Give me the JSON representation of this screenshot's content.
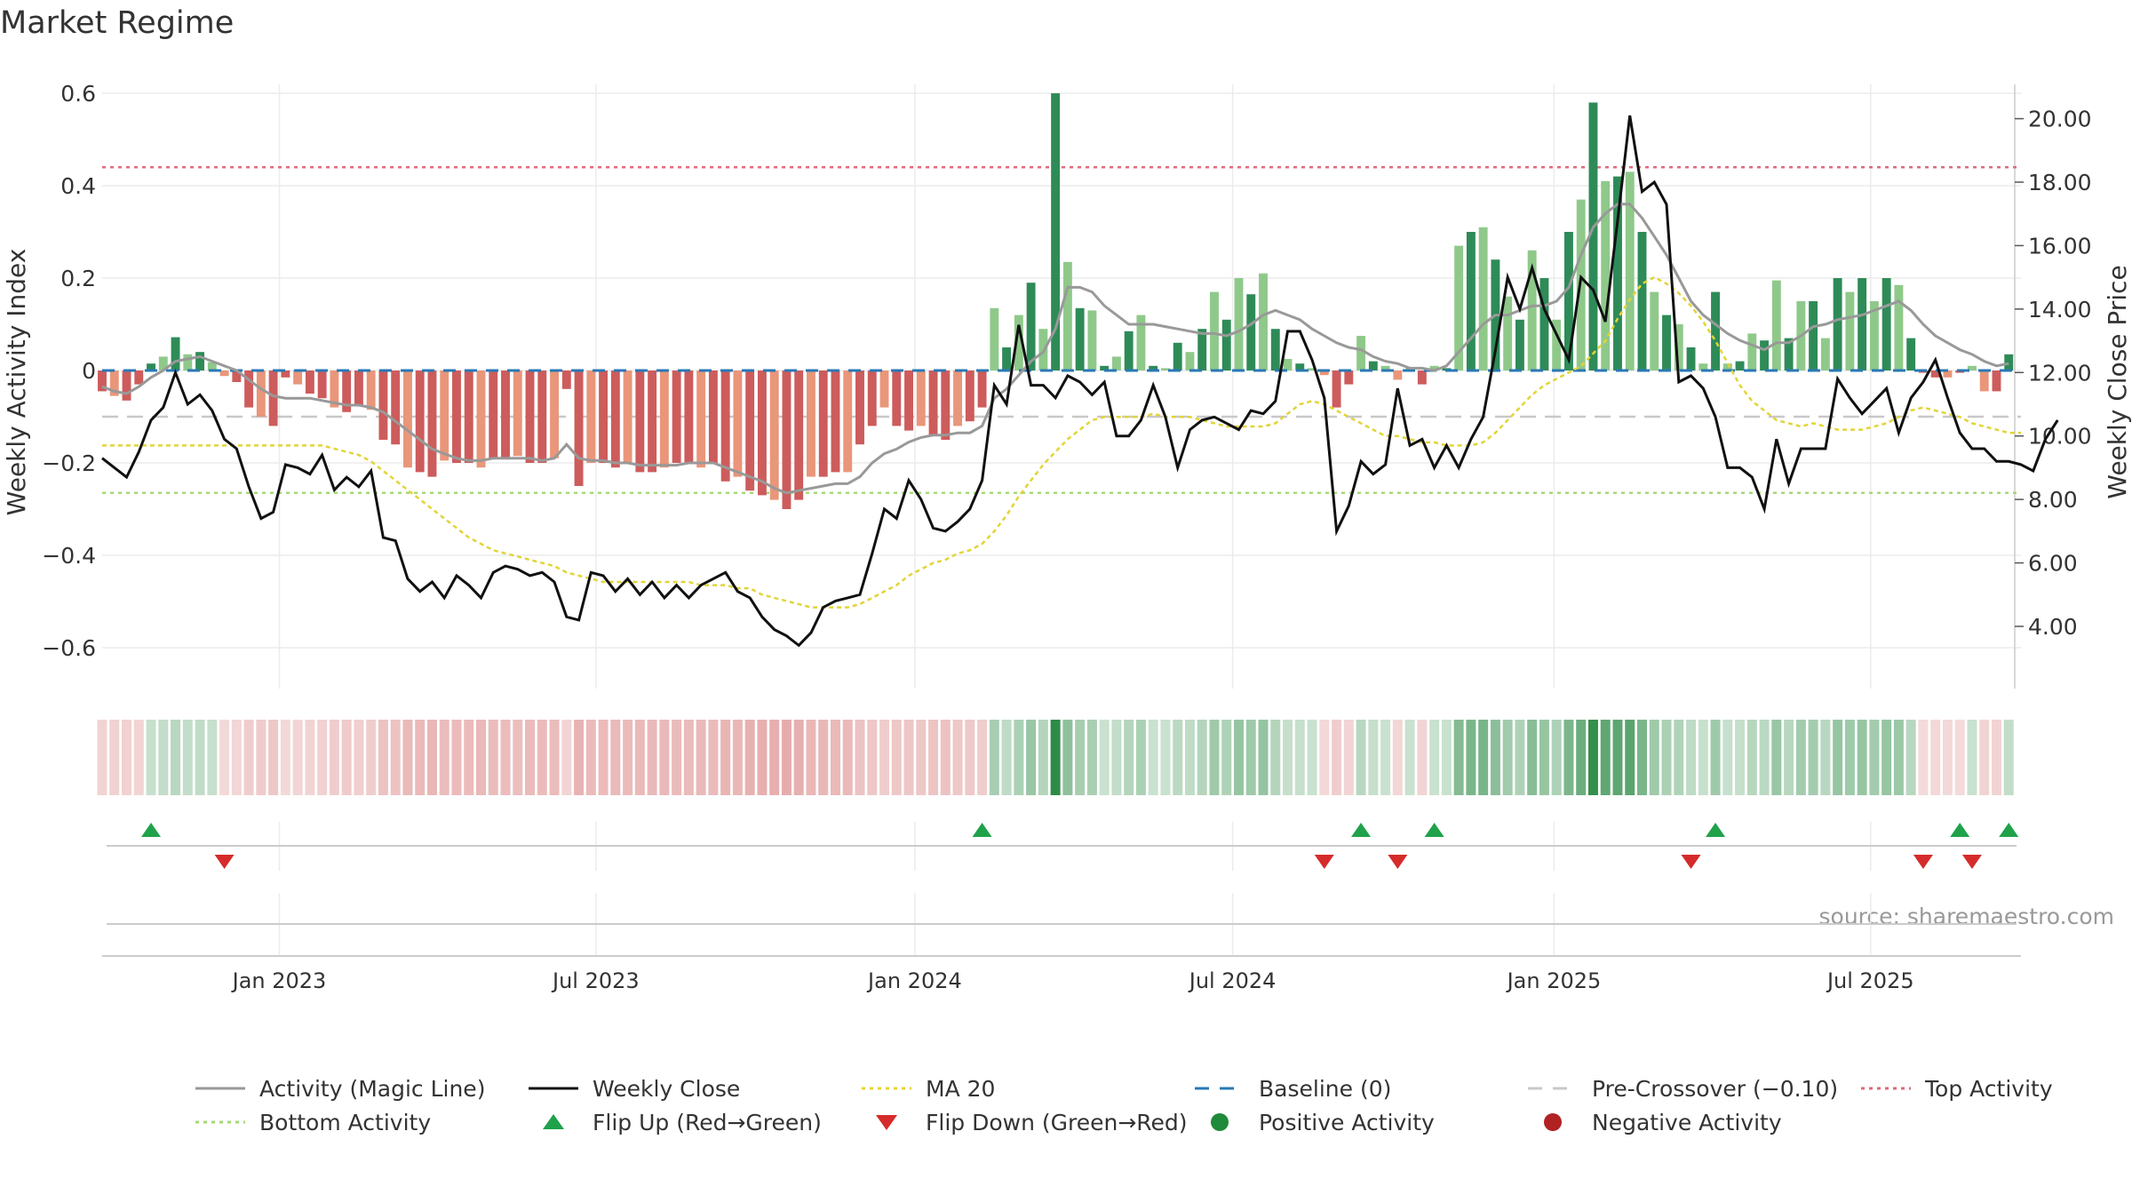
{
  "chart_data": {
    "type": "bar",
    "title": "Market Regime",
    "ylabel_left": "Weekly Activity Index",
    "ylabel_right": "Weekly Close Price",
    "ylim_left": [
      -0.65,
      0.6
    ],
    "ylim_right": [
      2.6,
      20.8
    ],
    "yticks_left": [
      -0.6,
      -0.4,
      -0.2,
      0,
      0.2,
      0.4,
      0.6
    ],
    "yticks_left_labels": [
      "−0.6",
      "−0.4",
      "−0.2",
      "0",
      "0.2",
      "0.4",
      "0.6"
    ],
    "yticks_right": [
      4,
      6,
      8,
      10,
      12,
      14,
      16,
      18,
      20
    ],
    "yticks_right_labels": [
      "4.00",
      "6.00",
      "8.00",
      "10.00",
      "12.00",
      "14.00",
      "16.00",
      "18.00",
      "20.00"
    ],
    "x_range_weeks": [
      0,
      157
    ],
    "x_ticks": [
      {
        "label": "Jan 2023",
        "week": 14.5
      },
      {
        "label": "Jul 2023",
        "week": 40.4
      },
      {
        "label": "Jan 2024",
        "week": 66.5
      },
      {
        "label": "Jul 2024",
        "week": 92.5
      },
      {
        "label": "Jan 2025",
        "week": 118.8
      },
      {
        "label": "Jul 2025",
        "week": 144.7
      }
    ],
    "grid": true,
    "legend_position": "bottom",
    "reference_lines": {
      "baseline": 0,
      "pre_crossover": -0.1,
      "top_activity": 0.44,
      "bottom_activity": -0.265
    },
    "series": [
      {
        "name": "Weekly Activity",
        "values": [
          -0.045,
          -0.055,
          -0.065,
          -0.03,
          0.015,
          0.03,
          0.072,
          0.035,
          0.04,
          0.018,
          -0.012,
          -0.025,
          -0.08,
          -0.1,
          -0.12,
          -0.015,
          -0.03,
          -0.05,
          -0.06,
          -0.08,
          -0.09,
          -0.075,
          -0.085,
          -0.15,
          -0.16,
          -0.21,
          -0.22,
          -0.23,
          -0.195,
          -0.2,
          -0.2,
          -0.21,
          -0.19,
          -0.19,
          -0.185,
          -0.2,
          -0.2,
          -0.19,
          -0.04,
          -0.25,
          -0.2,
          -0.2,
          -0.21,
          -0.2,
          -0.22,
          -0.22,
          -0.21,
          -0.2,
          -0.2,
          -0.21,
          -0.2,
          -0.24,
          -0.23,
          -0.26,
          -0.27,
          -0.28,
          -0.3,
          -0.28,
          -0.23,
          -0.23,
          -0.22,
          -0.22,
          -0.16,
          -0.12,
          -0.08,
          -0.12,
          -0.13,
          -0.12,
          -0.14,
          -0.15,
          -0.12,
          -0.11,
          -0.08,
          0.135,
          0.05,
          0.12,
          0.19,
          0.09,
          0.6,
          0.235,
          0.135,
          0.13,
          0.01,
          0.03,
          0.085,
          0.12,
          0.01,
          0.005,
          0.06,
          0.04,
          0.09,
          0.17,
          0.11,
          0.2,
          0.165,
          0.21,
          0.09,
          0.025,
          0.015,
          0.005,
          -0.01,
          -0.08,
          -0.03,
          0.075,
          0.02,
          0.01,
          -0.02,
          0.005,
          -0.03,
          0.01,
          0.005,
          0.27,
          0.3,
          0.31,
          0.24,
          0.16,
          0.11,
          0.26,
          0.2,
          0.11,
          0.3,
          0.37,
          0.58,
          0.41,
          0.42,
          0.43,
          0.3,
          0.17,
          0.12,
          0.1,
          0.05,
          0.015,
          0.17,
          0.015,
          0.02,
          0.08,
          0.065,
          0.195,
          0.07,
          0.15,
          0.15,
          0.07,
          0.2,
          0.17,
          0.2,
          0.15,
          0.2,
          0.185,
          0.07,
          -0.005,
          -0.015,
          -0.015,
          -0.005,
          0.01,
          -0.045,
          -0.045,
          0.035
        ]
      },
      {
        "name": "Activity (Magic Line)",
        "values": [
          -0.035,
          -0.045,
          -0.05,
          -0.035,
          -0.015,
          0,
          0.02,
          0.025,
          0.03,
          0.02,
          0.01,
          0,
          -0.02,
          -0.04,
          -0.055,
          -0.06,
          -0.06,
          -0.06,
          -0.065,
          -0.07,
          -0.075,
          -0.075,
          -0.08,
          -0.09,
          -0.11,
          -0.13,
          -0.15,
          -0.17,
          -0.18,
          -0.19,
          -0.195,
          -0.195,
          -0.19,
          -0.19,
          -0.19,
          -0.19,
          -0.195,
          -0.19,
          -0.16,
          -0.19,
          -0.195,
          -0.195,
          -0.2,
          -0.2,
          -0.205,
          -0.205,
          -0.205,
          -0.205,
          -0.2,
          -0.2,
          -0.2,
          -0.21,
          -0.22,
          -0.23,
          -0.24,
          -0.255,
          -0.265,
          -0.26,
          -0.255,
          -0.25,
          -0.245,
          -0.245,
          -0.23,
          -0.2,
          -0.18,
          -0.17,
          -0.155,
          -0.145,
          -0.14,
          -0.14,
          -0.135,
          -0.135,
          -0.12,
          -0.06,
          -0.04,
          -0.01,
          0.02,
          0.04,
          0.09,
          0.18,
          0.18,
          0.17,
          0.14,
          0.12,
          0.1,
          0.1,
          0.1,
          0.095,
          0.09,
          0.085,
          0.08,
          0.08,
          0.075,
          0.085,
          0.1,
          0.12,
          0.13,
          0.12,
          0.11,
          0.09,
          0.075,
          0.06,
          0.05,
          0.045,
          0.03,
          0.02,
          0.015,
          0.005,
          0.005,
          0,
          0.01,
          0.04,
          0.07,
          0.1,
          0.12,
          0.12,
          0.13,
          0.14,
          0.14,
          0.15,
          0.18,
          0.25,
          0.31,
          0.34,
          0.36,
          0.36,
          0.33,
          0.29,
          0.25,
          0.2,
          0.15,
          0.12,
          0.1,
          0.08,
          0.065,
          0.055,
          0.045,
          0.06,
          0.06,
          0.075,
          0.095,
          0.1,
          0.11,
          0.115,
          0.12,
          0.13,
          0.14,
          0.15,
          0.13,
          0.1,
          0.075,
          0.06,
          0.045,
          0.035,
          0.02,
          0.01,
          0.015
        ]
      },
      {
        "name": "Weekly Close",
        "values": [
          9.3,
          9.0,
          8.7,
          9.5,
          10.5,
          10.9,
          12.0,
          11.0,
          11.3,
          10.8,
          9.9,
          9.6,
          8.4,
          7.4,
          7.6,
          9.1,
          9.0,
          8.8,
          9.4,
          8.3,
          8.7,
          8.4,
          8.9,
          6.8,
          6.7,
          5.5,
          5.1,
          5.4,
          4.9,
          5.6,
          5.3,
          4.9,
          5.7,
          5.9,
          5.8,
          5.6,
          5.7,
          5.4,
          4.3,
          4.2,
          5.7,
          5.6,
          5.1,
          5.5,
          5.0,
          5.4,
          4.9,
          5.3,
          4.9,
          5.3,
          5.5,
          5.7,
          5.1,
          4.9,
          4.3,
          3.9,
          3.7,
          3.4,
          3.8,
          4.6,
          4.8,
          4.9,
          5.0,
          6.3,
          7.7,
          7.4,
          8.6,
          8.0,
          7.1,
          7.0,
          7.3,
          7.7,
          8.6,
          11.6,
          11.0,
          13.5,
          11.6,
          11.6,
          11.2,
          11.9,
          11.7,
          11.3,
          11.7,
          10.0,
          10.0,
          10.5,
          11.6,
          10.6,
          9.0,
          10.2,
          10.5,
          10.6,
          10.4,
          10.2,
          10.8,
          10.7,
          11.1,
          13.3,
          13.3,
          12.4,
          11.2,
          7.0,
          7.8,
          9.2,
          8.8,
          9.1,
          11.5,
          9.7,
          9.9,
          9.0,
          9.7,
          9.0,
          9.9,
          10.6,
          12.7,
          15.0,
          14.0,
          15.3,
          14.0,
          13.2,
          12.4,
          15.0,
          14.6,
          13.6,
          16.8,
          20.1,
          17.7,
          18.0,
          17.3,
          11.7,
          11.9,
          11.5,
          10.6,
          9.0,
          9.0,
          8.7,
          7.7,
          9.9,
          8.5,
          9.6,
          9.6,
          9.6,
          11.8,
          11.2,
          10.7,
          11.1,
          11.5,
          10.1,
          11.2,
          11.7,
          12.4,
          11.2,
          10.1,
          9.6,
          9.6,
          9.2,
          9.2,
          9.1,
          8.9,
          9.9,
          10.5
        ]
      },
      {
        "name": "MA 20",
        "values": [
          9.7,
          9.7,
          9.7,
          9.7,
          9.7,
          9.7,
          9.7,
          9.7,
          9.7,
          9.7,
          9.7,
          9.7,
          9.7,
          9.7,
          9.7,
          9.7,
          9.7,
          9.7,
          9.7,
          9.6,
          9.5,
          9.4,
          9.2,
          8.9,
          8.6,
          8.3,
          8.0,
          7.7,
          7.4,
          7.1,
          6.8,
          6.6,
          6.4,
          6.3,
          6.2,
          6.1,
          6.0,
          5.9,
          5.7,
          5.6,
          5.5,
          5.4,
          5.4,
          5.4,
          5.4,
          5.4,
          5.4,
          5.4,
          5.4,
          5.3,
          5.3,
          5.3,
          5.2,
          5.2,
          5.0,
          4.9,
          4.8,
          4.7,
          4.6,
          4.6,
          4.6,
          4.6,
          4.7,
          4.9,
          5.1,
          5.3,
          5.6,
          5.8,
          6.0,
          6.1,
          6.3,
          6.4,
          6.6,
          7.0,
          7.5,
          8.1,
          8.6,
          9.1,
          9.5,
          9.9,
          10.2,
          10.5,
          10.6,
          10.6,
          10.6,
          10.6,
          10.7,
          10.6,
          10.6,
          10.6,
          10.5,
          10.4,
          10.3,
          10.3,
          10.3,
          10.3,
          10.4,
          10.7,
          11.0,
          11.1,
          11.0,
          10.8,
          10.6,
          10.4,
          10.2,
          10.0,
          10.0,
          9.9,
          9.8,
          9.8,
          9.7,
          9.7,
          9.7,
          9.8,
          10.1,
          10.5,
          10.9,
          11.3,
          11.6,
          11.8,
          12.0,
          12.2,
          12.6,
          13.0,
          13.7,
          14.3,
          14.8,
          15.0,
          14.8,
          14.5,
          14.1,
          13.6,
          13.0,
          12.3,
          11.6,
          11.1,
          10.8,
          10.5,
          10.4,
          10.3,
          10.4,
          10.3,
          10.2,
          10.2,
          10.2,
          10.3,
          10.4,
          10.6,
          10.8,
          10.9,
          10.8,
          10.7,
          10.6,
          10.4,
          10.3,
          10.2,
          10.1,
          10.1
        ]
      }
    ],
    "flip_up_weeks": [
      4,
      72,
      103,
      109,
      132,
      152,
      156
    ],
    "flip_down_weeks": [
      10,
      100,
      106,
      130,
      149,
      153
    ],
    "source_text": "source: sharemaestro.com",
    "legend": [
      {
        "label": "Activity (Magic Line)",
        "kind": "line",
        "color": "#999999"
      },
      {
        "label": "Weekly Close",
        "kind": "line",
        "color": "#111111"
      },
      {
        "label": "MA 20",
        "kind": "dotted",
        "color": "#e3d437"
      },
      {
        "label": "Baseline (0)",
        "kind": "dashed",
        "color": "#2a78b5"
      },
      {
        "label": "Pre-Crossover (−0.10)",
        "kind": "dashed",
        "color": "#c8c8c8"
      },
      {
        "label": "Top Activity",
        "kind": "dotted",
        "color": "#e06a7a"
      },
      {
        "label": "Bottom Activity",
        "kind": "dotted",
        "color": "#a6d87a"
      },
      {
        "label": "Flip Up (Red→Green)",
        "kind": "triangle-up",
        "color": "#1fa24a"
      },
      {
        "label": "Flip Down (Green→Red)",
        "kind": "triangle-down",
        "color": "#d62b2b"
      },
      {
        "label": "Positive Activity",
        "kind": "circle",
        "color": "#1f8a3a"
      },
      {
        "label": "Negative Activity",
        "kind": "circle",
        "color": "#b22222"
      }
    ],
    "colors": {
      "pos_strong": "#2e8b57",
      "pos_light": "#8fc98a",
      "neg_strong": "#cd5c5c",
      "neg_light": "#e9967a",
      "close": "#111111",
      "magic": "#999999",
      "ma": "#e3d437",
      "baseline": "#2a78b5",
      "pre_crossover": "#c8c8c8",
      "top": "#e06a7a",
      "bottom": "#a6d87a",
      "flip_up": "#1fa24a",
      "flip_down": "#d62b2b",
      "grid": "#ebebeb",
      "axis": "#cccccc"
    }
  }
}
